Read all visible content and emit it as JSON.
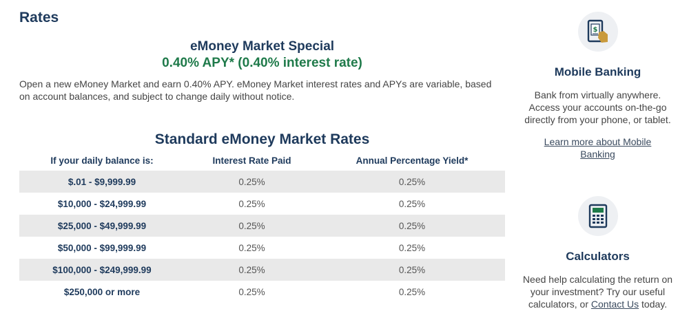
{
  "page": {
    "heading": "Rates"
  },
  "special": {
    "title": "eMoney Market Special",
    "rate": "0.40% APY* (0.40% interest rate)",
    "description": "Open a new eMoney Market and earn 0.40% APY. eMoney Market interest rates and APYs are variable, based on account balances, and subject to change daily without notice."
  },
  "rates_table": {
    "title": "Standard eMoney Market Rates",
    "headers": [
      "If your daily balance is:",
      "Interest Rate Paid",
      "Annual Percentage Yield*"
    ],
    "rows": [
      {
        "balance": "$.01 - $9,999.99",
        "rate": "0.25%",
        "apy": "0.25%"
      },
      {
        "balance": "$10,000 - $24,999.99",
        "rate": "0.25%",
        "apy": "0.25%"
      },
      {
        "balance": "$25,000 - $49,999.99",
        "rate": "0.25%",
        "apy": "0.25%"
      },
      {
        "balance": "$50,000 - $99,999.99",
        "rate": "0.25%",
        "apy": "0.25%"
      },
      {
        "balance": "$100,000 - $249,999.99",
        "rate": "0.25%",
        "apy": "0.25%"
      },
      {
        "balance": "$250,000 or more",
        "rate": "0.25%",
        "apy": "0.25%"
      }
    ]
  },
  "sidebar": {
    "mobile": {
      "icon": "mobile-deposit-icon",
      "title": "Mobile Banking",
      "text": "Bank from virtually anywhere. Access your accounts on-the-go directly from your phone, or tablet.",
      "link": "Learn more about Mobile Banking"
    },
    "calculators": {
      "icon": "calculator-icon",
      "title": "Calculators",
      "text_before": "Need help calculating the return on your investment? Try our useful calculators, or ",
      "link": "Contact Us",
      "text_after": " today."
    }
  },
  "colors": {
    "navy": "#1e3a5c",
    "green": "#1f7a4a",
    "row_stripe": "#e9e9e9",
    "icon_accent": "#c99a3c"
  }
}
